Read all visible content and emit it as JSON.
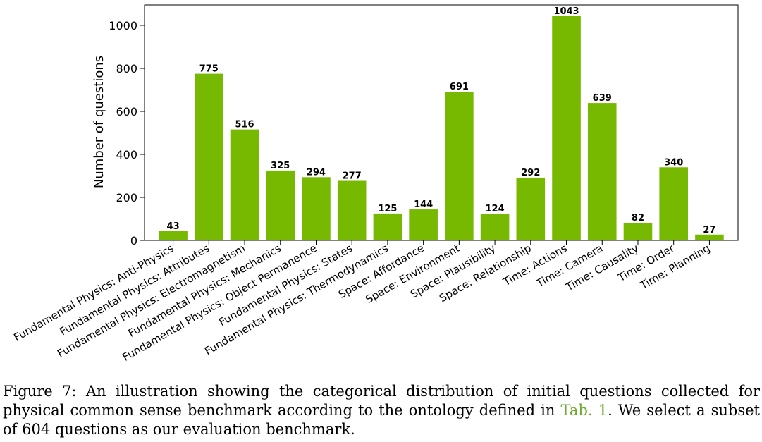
{
  "chart_data": {
    "type": "bar",
    "categories": [
      "Fundamental Physics: Anti-Physics",
      "Fundamental Physics: Attributes",
      "Fundamental Physics: Electromagnetism",
      "Fundamental Physics: Mechanics",
      "Fundamental Physics: Object Permanence",
      "Fundamental Physics: States",
      "Fundamental Physics: Thermodynamics",
      "Space: Affordance",
      "Space: Environment",
      "Space: Plausibility",
      "Space: Relationship",
      "Time: Actions",
      "Time: Camera",
      "Time: Causality",
      "Time: Order",
      "Time: Planning"
    ],
    "values": [
      43,
      775,
      516,
      325,
      294,
      277,
      125,
      144,
      691,
      124,
      292,
      1043,
      639,
      82,
      340,
      27
    ],
    "ylabel": "Number of questions",
    "ylim": [
      0,
      1095
    ],
    "yticks": [
      0,
      200,
      400,
      600,
      800,
      1000
    ],
    "bar_color": "#77b800",
    "grid": false,
    "legend": false,
    "data_labels": true
  },
  "caption": {
    "prefix": "Figure 7: An illustration showing the categorical distribution of initial questions collected for physical common sense benchmark according to the ontology defined in ",
    "ref": "Tab. 1",
    "suffix": ".  We select a subset of 604 questions as our evaluation benchmark."
  }
}
